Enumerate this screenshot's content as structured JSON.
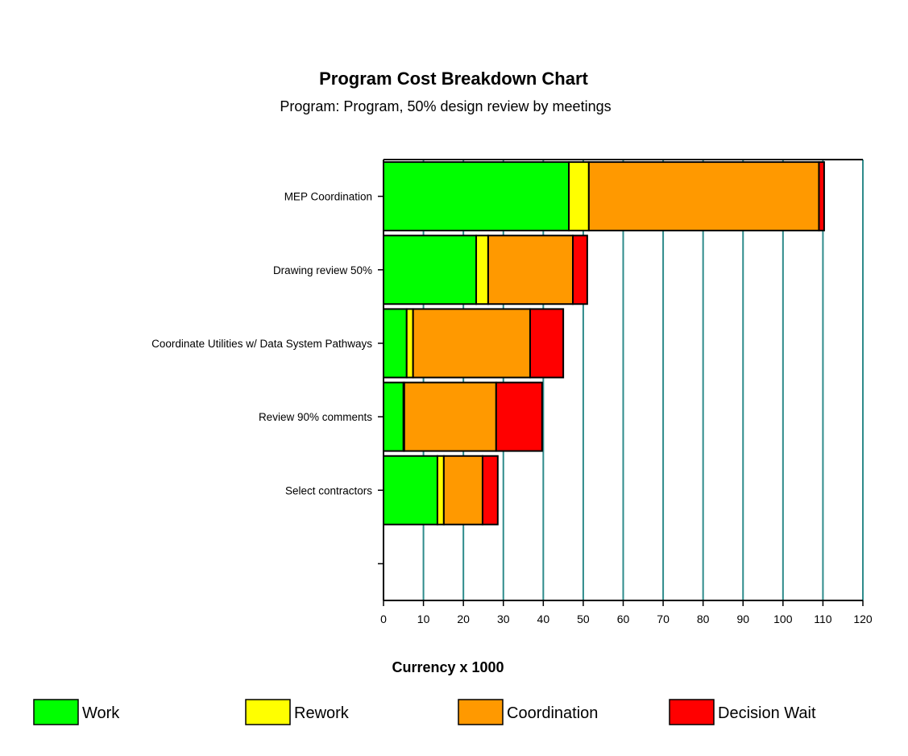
{
  "chart_data": {
    "type": "bar",
    "orientation": "horizontal",
    "stacked": true,
    "title": "Program Cost Breakdown Chart",
    "subtitle": "Program: Program, 50% design review by meetings",
    "xlabel": "Currency x 1000",
    "ylabel": "",
    "xlim": [
      0,
      120
    ],
    "xticks": [
      0,
      10,
      20,
      30,
      40,
      50,
      60,
      70,
      80,
      90,
      100,
      110,
      120
    ],
    "grid": "vertical",
    "legend_position": "bottom",
    "categories": [
      "MEP Coordination",
      "Drawing review 50%",
      "Coordinate Utilities w/ Data System Pathways",
      "Review 90% comments",
      "Select contractors",
      ""
    ],
    "series": [
      {
        "name": "Work",
        "color": "#00ff00",
        "values": [
          46.4,
          23.2,
          5.8,
          5.0,
          13.5,
          0
        ]
      },
      {
        "name": "Rework",
        "color": "#ffff00",
        "values": [
          5.0,
          3.0,
          1.6,
          0.2,
          1.6,
          0
        ]
      },
      {
        "name": "Coordination",
        "color": "#ff9900",
        "values": [
          57.6,
          21.2,
          29.3,
          23.0,
          9.7,
          0
        ]
      },
      {
        "name": "Decision Wait",
        "color": "#ff0000",
        "values": [
          1.3,
          3.6,
          8.3,
          11.5,
          3.8,
          0
        ]
      }
    ],
    "grid_color": "#2e8b8b"
  }
}
